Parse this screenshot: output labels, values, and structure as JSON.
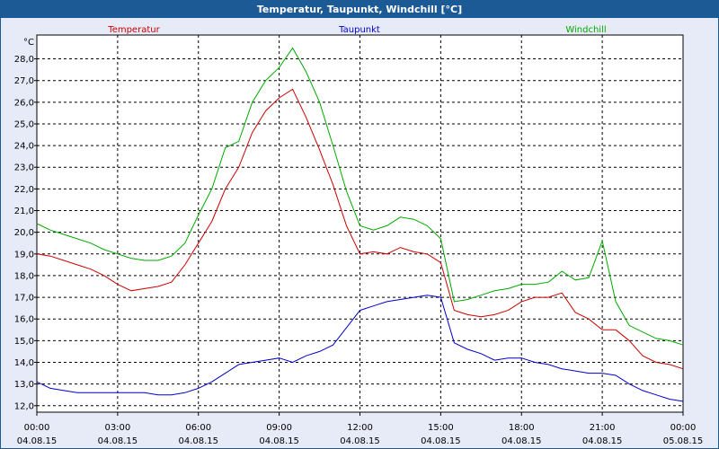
{
  "chart_data": {
    "type": "line",
    "title": "Temperatur, Taupunkt, Windchill [°C]",
    "ylabel": "°C",
    "ylim": [
      11.7,
      29.1
    ],
    "xlim": [
      0,
      24
    ],
    "grid": true,
    "yticks": [
      "12,0",
      "13,0",
      "14,0",
      "15,0",
      "16,0",
      "17,0",
      "18,0",
      "19,0",
      "20,0",
      "21,0",
      "22,0",
      "23,0",
      "24,0",
      "25,0",
      "26,0",
      "27,0",
      "28,0"
    ],
    "xticks": [
      {
        "time": "00:00",
        "date": "04.08.15"
      },
      {
        "time": "03:00",
        "date": "04.08.15"
      },
      {
        "time": "06:00",
        "date": "04.08.15"
      },
      {
        "time": "09:00",
        "date": "04.08.15"
      },
      {
        "time": "12:00",
        "date": "04.08.15"
      },
      {
        "time": "15:00",
        "date": "04.08.15"
      },
      {
        "time": "18:00",
        "date": "04.08.15"
      },
      {
        "time": "21:00",
        "date": "04.08.15"
      },
      {
        "time": "00:00",
        "date": "05.08.15"
      }
    ],
    "x": [
      0,
      0.5,
      1,
      1.5,
      2,
      2.5,
      3,
      3.5,
      4,
      4.5,
      5,
      5.5,
      6,
      6.5,
      7,
      7.5,
      8,
      8.5,
      9,
      9.5,
      10,
      10.5,
      11,
      11.5,
      12,
      12.5,
      13,
      13.5,
      14,
      14.5,
      15,
      15.5,
      16,
      16.5,
      17,
      17.5,
      18,
      18.5,
      19,
      19.5,
      20,
      20.5,
      21,
      21.5,
      22,
      22.5,
      23,
      23.5,
      24
    ],
    "series": [
      {
        "name": "Temperatur",
        "color": "#cc0000",
        "values": [
          19.0,
          18.9,
          18.7,
          18.5,
          18.3,
          18.0,
          17.6,
          17.3,
          17.4,
          17.5,
          17.7,
          18.5,
          19.5,
          20.5,
          22.0,
          23.0,
          24.6,
          25.6,
          26.2,
          26.6,
          25.3,
          23.8,
          22.2,
          20.3,
          19.0,
          19.1,
          19.0,
          19.3,
          19.1,
          19.0,
          18.6,
          16.4,
          16.2,
          16.1,
          16.2,
          16.4,
          16.8,
          17.0,
          17.0,
          17.2,
          16.3,
          16.0,
          15.5,
          15.5,
          15.0,
          14.3,
          14.0,
          13.9,
          13.7
        ]
      },
      {
        "name": "Taupunkt",
        "color": "#0000cc",
        "values": [
          13.1,
          12.8,
          12.7,
          12.6,
          12.6,
          12.6,
          12.6,
          12.6,
          12.6,
          12.5,
          12.5,
          12.6,
          12.8,
          13.1,
          13.5,
          13.9,
          14.0,
          14.1,
          14.2,
          14.0,
          14.3,
          14.5,
          14.8,
          15.6,
          16.4,
          16.6,
          16.8,
          16.9,
          17.0,
          17.1,
          17.0,
          14.9,
          14.6,
          14.4,
          14.1,
          14.2,
          14.2,
          14.0,
          13.9,
          13.7,
          13.6,
          13.5,
          13.5,
          13.4,
          13.0,
          12.7,
          12.5,
          12.3,
          12.2
        ]
      },
      {
        "name": "Windchill",
        "color": "#00aa00",
        "values": [
          20.4,
          20.1,
          19.9,
          19.7,
          19.5,
          19.2,
          19.0,
          18.8,
          18.7,
          18.7,
          18.9,
          19.5,
          20.8,
          22.0,
          23.9,
          24.2,
          26.0,
          27.0,
          27.6,
          28.5,
          27.4,
          26.0,
          24.0,
          21.9,
          20.3,
          20.1,
          20.3,
          20.7,
          20.6,
          20.3,
          19.7,
          16.8,
          16.9,
          17.1,
          17.3,
          17.4,
          17.6,
          17.6,
          17.7,
          18.2,
          17.8,
          17.9,
          19.6,
          16.8,
          15.7,
          15.4,
          15.1,
          15.0,
          14.8
        ]
      }
    ]
  }
}
